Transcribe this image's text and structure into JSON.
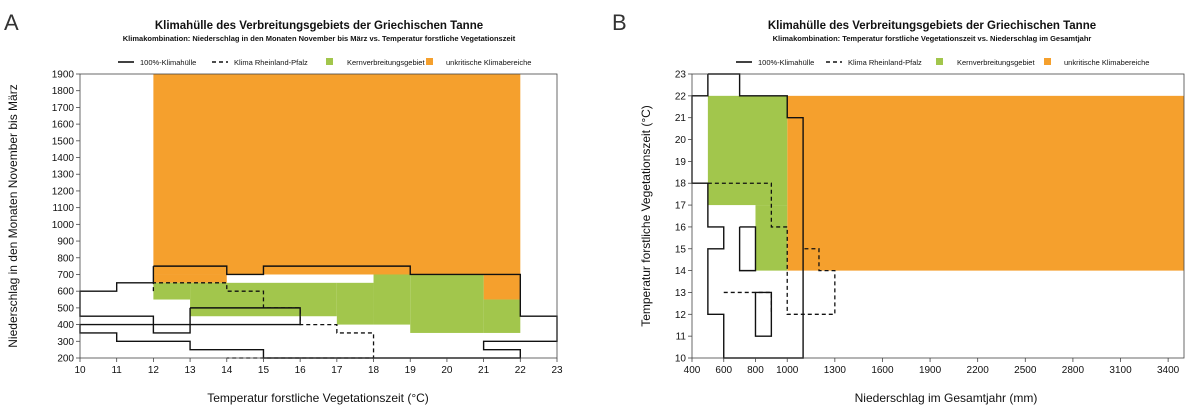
{
  "colors": {
    "core": "#a2c64c",
    "uncritical": "#f5a02d",
    "line": "#111111"
  },
  "panels": [
    {
      "letter": "A",
      "title": "Klimahülle des Verbreitungsgebiets der Griechischen Tanne",
      "subtitle": "Klimakombination: Niederschlag in den Monaten November bis März  vs. Temperatur forstliche Vegetationszeit",
      "legend": [
        "100%-Klimahülle",
        "Klima Rheinland-Pfalz",
        "Kernverbreitungsgebiet",
        "unkritische Klimabereiche"
      ]
    },
    {
      "letter": "B",
      "title": "Klimahülle des Verbreitungsgebiets der Griechischen Tanne",
      "subtitle": "Klimakombination: Temperatur forstliche Vegetationszeit  vs. Niederschlag im Gesamtjahr",
      "legend": [
        "100%-Klimahülle",
        "Klima Rheinland-Pfalz",
        "Kernverbreitungsgebiet",
        "unkritische Klimabereiche"
      ]
    }
  ],
  "chart_data": [
    {
      "type": "area",
      "xlabel": "Temperatur forstliche Vegetationszeit (°C)",
      "ylabel": "Niederschlag in den Monaten November bis März",
      "xlim": [
        10,
        23
      ],
      "ylim": [
        200,
        1900
      ],
      "xticks": [
        10,
        11,
        12,
        13,
        14,
        15,
        16,
        17,
        18,
        19,
        20,
        21,
        22,
        23
      ],
      "yticks": [
        200,
        300,
        400,
        500,
        600,
        700,
        800,
        900,
        1000,
        1100,
        1200,
        1300,
        1400,
        1500,
        1600,
        1700,
        1800,
        1900
      ],
      "uncritical_regions": [
        [
          12,
          22,
          700,
          1900
        ],
        [
          12,
          14,
          650,
          700
        ],
        [
          15,
          19,
          700,
          750
        ],
        [
          21,
          22,
          550,
          700
        ]
      ],
      "core_regions": [
        [
          12,
          13,
          550,
          650
        ],
        [
          13,
          17,
          450,
          650
        ],
        [
          17,
          18,
          400,
          650
        ],
        [
          18,
          19,
          400,
          700
        ],
        [
          19,
          21,
          350,
          700
        ],
        [
          21,
          22,
          350,
          550
        ]
      ],
      "envelope_100": [
        [
          [
            12,
            750
          ],
          [
            14,
            750
          ],
          [
            14,
            700
          ],
          [
            15,
            700
          ],
          [
            15,
            750
          ],
          [
            19,
            750
          ],
          [
            19,
            700
          ],
          [
            22,
            700
          ],
          [
            22,
            450
          ],
          [
            23,
            450
          ],
          [
            23,
            300
          ],
          [
            21,
            300
          ],
          [
            21,
            250
          ],
          [
            22,
            250
          ],
          [
            22,
            200
          ],
          [
            15,
            200
          ],
          [
            15,
            250
          ],
          [
            13,
            250
          ],
          [
            13,
            300
          ],
          [
            11,
            300
          ],
          [
            11,
            350
          ],
          [
            10,
            350
          ],
          [
            10,
            400
          ],
          [
            13,
            400
          ],
          [
            13,
            350
          ],
          [
            12,
            350
          ],
          [
            12,
            450
          ],
          [
            10,
            450
          ],
          [
            10,
            600
          ],
          [
            11,
            600
          ],
          [
            11,
            650
          ],
          [
            12,
            650
          ],
          [
            12,
            750
          ]
        ],
        [
          [
            13,
            500
          ],
          [
            16,
            500
          ],
          [
            16,
            400
          ],
          [
            13,
            400
          ],
          [
            13,
            500
          ]
        ]
      ],
      "rlp_climate": [
        [
          12,
          600
        ],
        [
          12,
          650
        ],
        [
          14,
          650
        ],
        [
          14,
          600
        ],
        [
          15,
          600
        ],
        [
          15,
          500
        ],
        [
          16,
          500
        ],
        [
          16,
          400
        ],
        [
          17,
          400
        ],
        [
          17,
          350
        ],
        [
          18,
          350
        ],
        [
          18,
          200
        ],
        [
          14,
          200
        ]
      ]
    },
    {
      "type": "area",
      "xlabel": "Niederschlag im Gesamtjahr (mm)",
      "ylabel": "Temperatur forstliche Vegetationszeit (°C)",
      "xlim": [
        400,
        3500
      ],
      "ylim": [
        10,
        23
      ],
      "xticks": [
        400,
        600,
        800,
        1000,
        1300,
        1600,
        1900,
        2200,
        2500,
        2800,
        3100,
        3400
      ],
      "yticks": [
        10,
        11,
        12,
        13,
        14,
        15,
        16,
        17,
        18,
        19,
        20,
        21,
        22,
        23
      ],
      "uncritical_regions": [
        [
          1000,
          3500,
          14,
          22
        ]
      ],
      "core_regions": [
        [
          500,
          1000,
          17,
          22
        ],
        [
          800,
          1000,
          14,
          17
        ]
      ],
      "envelope_100": [
        [
          [
            500,
            23
          ],
          [
            700,
            23
          ],
          [
            700,
            22
          ],
          [
            1000,
            22
          ],
          [
            1000,
            21
          ],
          [
            1100,
            21
          ],
          [
            1100,
            10
          ],
          [
            600,
            10
          ],
          [
            600,
            12
          ],
          [
            500,
            12
          ],
          [
            500,
            15
          ],
          [
            600,
            15
          ],
          [
            600,
            16
          ],
          [
            500,
            16
          ],
          [
            500,
            18
          ],
          [
            400,
            18
          ],
          [
            400,
            22
          ],
          [
            500,
            22
          ],
          [
            500,
            23
          ]
        ],
        [
          [
            700,
            16
          ],
          [
            800,
            16
          ],
          [
            800,
            14
          ],
          [
            700,
            14
          ],
          [
            700,
            16
          ]
        ],
        [
          [
            800,
            13
          ],
          [
            900,
            13
          ],
          [
            900,
            11
          ],
          [
            800,
            11
          ],
          [
            800,
            13
          ]
        ]
      ],
      "rlp_climate": [
        [
          500,
          18
        ],
        [
          900,
          18
        ],
        [
          900,
          16
        ],
        [
          1000,
          16
        ],
        [
          1000,
          12
        ],
        [
          1300,
          12
        ],
        [
          1300,
          14
        ],
        [
          1200,
          14
        ],
        [
          1200,
          15
        ],
        [
          1100,
          15
        ]
      ]
    },
    {
      "type": "line",
      "x": [
        600,
        900,
        900
      ],
      "y": [
        13,
        13,
        12
      ]
    }
  ]
}
